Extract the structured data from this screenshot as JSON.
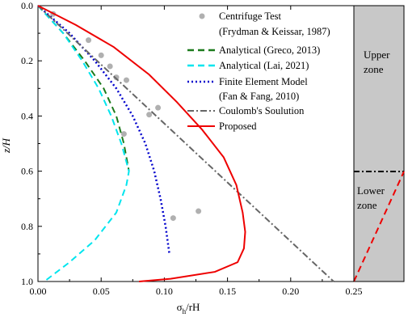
{
  "chart_data": {
    "type": "line",
    "xlabel": "σh/rH",
    "xlabel_main": "σ",
    "xlabel_sub": "h",
    "xlabel_rest": "/rH",
    "ylabel": "z/H",
    "xlim": [
      0.0,
      0.25
    ],
    "ylim": [
      0.0,
      1.0
    ],
    "y_inverted": true,
    "x_ticks": [
      "0.00",
      "0.05",
      "0.10",
      "0.15",
      "0.20",
      "0.25"
    ],
    "y_ticks": [
      "0.0",
      "0.2",
      "0.4",
      "0.6",
      "0.8",
      "1.0"
    ],
    "legend_position": "top-right",
    "series": [
      {
        "name": "Centrifuge Test",
        "name_line2": "(Frydman & Keissar, 1987)",
        "style": "markers",
        "color": "#b0b0b0",
        "points": [
          [
            0.012,
            0.03
          ],
          [
            0.04,
            0.125
          ],
          [
            0.05,
            0.18
          ],
          [
            0.057,
            0.22
          ],
          [
            0.062,
            0.26
          ],
          [
            0.07,
            0.27
          ],
          [
            0.088,
            0.395
          ],
          [
            0.095,
            0.37
          ],
          [
            0.068,
            0.465
          ],
          [
            0.107,
            0.77
          ],
          [
            0.127,
            0.745
          ]
        ]
      },
      {
        "name": "Analytical (Greco, 2013)",
        "style": "dashed",
        "color": "#1b7a1b",
        "points": [
          [
            0.0,
            0.0
          ],
          [
            0.02,
            0.1
          ],
          [
            0.037,
            0.2
          ],
          [
            0.052,
            0.3
          ],
          [
            0.062,
            0.4
          ],
          [
            0.068,
            0.5
          ],
          [
            0.072,
            0.6
          ]
        ]
      },
      {
        "name": "Analytical (Lai, 2021)",
        "style": "dashed",
        "color": "#00e5ee",
        "points": [
          [
            0.0,
            0.0
          ],
          [
            0.02,
            0.1
          ],
          [
            0.035,
            0.2
          ],
          [
            0.048,
            0.3
          ],
          [
            0.058,
            0.4
          ],
          [
            0.066,
            0.5
          ],
          [
            0.072,
            0.6
          ],
          [
            0.07,
            0.65
          ],
          [
            0.062,
            0.75
          ],
          [
            0.045,
            0.85
          ],
          [
            0.025,
            0.93
          ],
          [
            0.005,
            1.0
          ]
        ]
      },
      {
        "name": "Finite Element Model",
        "name_line2": "(Fan & Fang, 2010)",
        "style": "dotted",
        "color": "#0000cc",
        "points": [
          [
            0.0,
            0.0
          ],
          [
            0.025,
            0.1
          ],
          [
            0.045,
            0.2
          ],
          [
            0.062,
            0.3
          ],
          [
            0.075,
            0.4
          ],
          [
            0.085,
            0.5
          ],
          [
            0.092,
            0.6
          ],
          [
            0.097,
            0.7
          ],
          [
            0.101,
            0.8
          ],
          [
            0.104,
            0.9
          ]
        ]
      },
      {
        "name": "Coulomb's Soulution",
        "style": "dashdot",
        "color": "#666666",
        "points": [
          [
            0.0,
            0.0
          ],
          [
            0.234,
            1.0
          ]
        ]
      },
      {
        "name": "Proposed",
        "style": "solid",
        "color": "#ee0000",
        "points": [
          [
            0.0,
            0.0
          ],
          [
            0.03,
            0.07
          ],
          [
            0.06,
            0.15
          ],
          [
            0.088,
            0.25
          ],
          [
            0.11,
            0.35
          ],
          [
            0.13,
            0.45
          ],
          [
            0.147,
            0.55
          ],
          [
            0.157,
            0.65
          ],
          [
            0.162,
            0.75
          ],
          [
            0.164,
            0.82
          ],
          [
            0.163,
            0.88
          ],
          [
            0.158,
            0.93
          ],
          [
            0.14,
            0.965
          ],
          [
            0.105,
            0.99
          ],
          [
            0.08,
            1.0
          ]
        ]
      }
    ]
  },
  "side_panel": {
    "upper_label_1": "Upper",
    "upper_label_2": "zone",
    "lower_label_1": "Lower",
    "lower_label_2": "zone",
    "fill_color": "#c8c8c8",
    "zone_boundary": 0.6
  }
}
